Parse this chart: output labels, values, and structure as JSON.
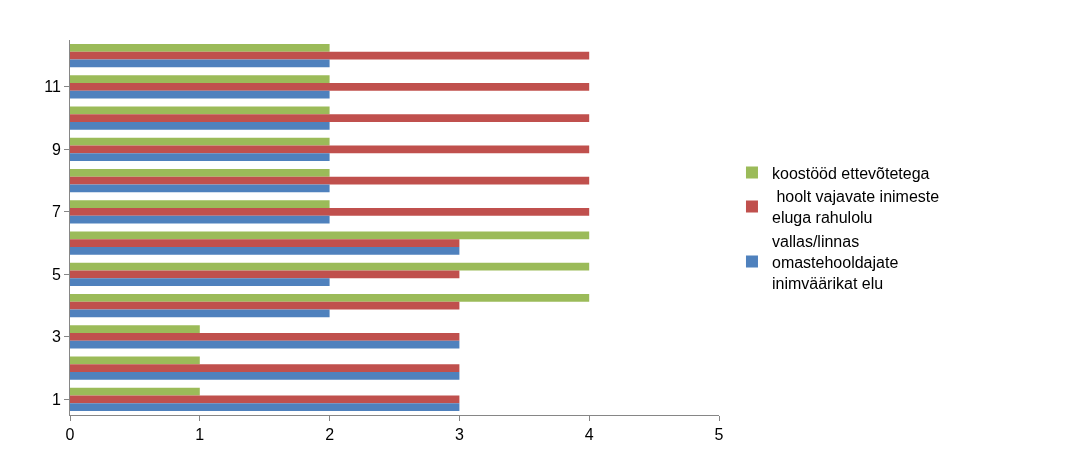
{
  "chart_data": {
    "type": "bar",
    "orientation": "horizontal",
    "categories": [
      null,
      "11",
      null,
      "9",
      null,
      "7",
      null,
      "5",
      null,
      "3",
      null,
      "1"
    ],
    "series": [
      {
        "name": "vallas/linnas omastehooldajate inimväärikat elu",
        "color": "#4f81bd",
        "values": [
          2,
          2,
          2,
          2,
          2,
          2,
          3,
          2,
          2,
          3,
          3,
          3
        ]
      },
      {
        "name": " hoolt vajavate inimeste eluga rahulolu",
        "color": "#c0504d",
        "values": [
          4,
          4,
          4,
          4,
          4,
          4,
          3,
          3,
          3,
          3,
          3,
          3
        ]
      },
      {
        "name": "koostööd ettevõtetega",
        "color": "#9bbb59",
        "values": [
          2,
          2,
          2,
          2,
          2,
          2,
          4,
          4,
          4,
          1,
          1,
          1
        ]
      }
    ],
    "xlim": [
      0,
      5
    ],
    "xticks": [
      0,
      1,
      2,
      3,
      4,
      5
    ],
    "grid": false,
    "legend": "right"
  }
}
